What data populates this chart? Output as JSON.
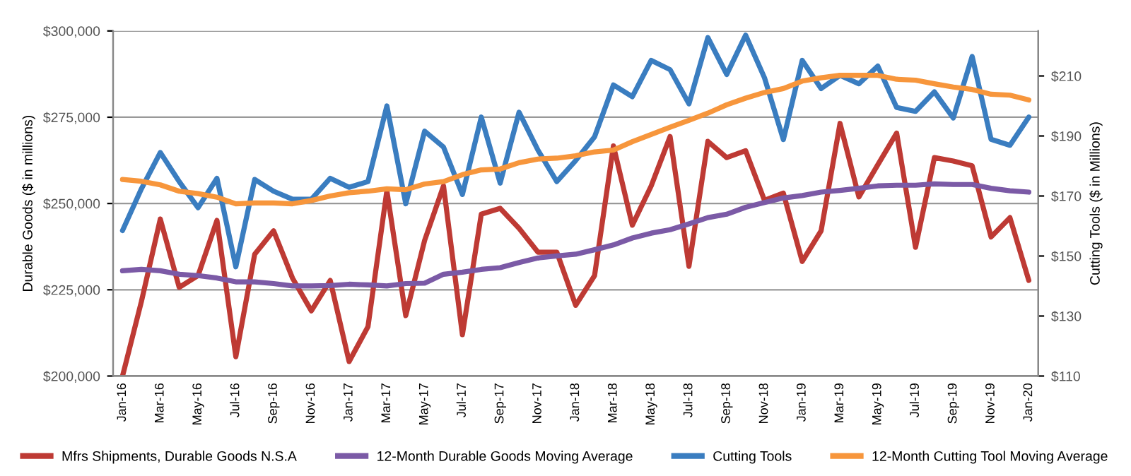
{
  "chart_data": {
    "type": "line",
    "categories": [
      "Jan-16",
      null,
      "Mar-16",
      null,
      "May-16",
      null,
      "Jul-16",
      null,
      "Sep-16",
      null,
      "Nov-16",
      null,
      "Jan-17",
      null,
      "Mar-17",
      null,
      "May-17",
      null,
      "Jul-17",
      null,
      "Sep-17",
      null,
      "Nov-17",
      null,
      "Jan-18",
      null,
      "Mar-18",
      null,
      "May-18",
      null,
      "Jul-18",
      null,
      "Sep-18",
      null,
      "Nov-18",
      null,
      "Jan-19",
      null,
      "Mar-19",
      null,
      "May-19",
      null,
      "Jul-19",
      null,
      "Sep-19",
      null,
      "Nov-19",
      null,
      "Jan-20"
    ],
    "series": [
      {
        "name": "Mfrs Shipments, Durable Goods N.S.A",
        "color": "#be3a34",
        "values": [
          200000,
          221600,
          245500,
          225700,
          229100,
          245100,
          205600,
          235300,
          242100,
          228400,
          218900,
          227700,
          204200,
          214300,
          253700,
          217500,
          239300,
          255100,
          212000,
          246900,
          248600,
          242800,
          235900,
          235900,
          220500,
          229100,
          266700,
          243700,
          255100,
          269400,
          231800,
          268000,
          263300,
          265300,
          250900,
          253000,
          233200,
          242100,
          273200,
          251900,
          261200,
          270400,
          237300,
          263300,
          262300,
          260900,
          240300,
          245900,
          227700
        ]
      },
      {
        "name": "12-Month Durable Goods Moving Average",
        "color": "#7b5aa6",
        "values": [
          230500,
          230900,
          230500,
          229500,
          229100,
          228400,
          227300,
          227300,
          226800,
          226100,
          226100,
          226200,
          226600,
          226400,
          226100,
          226800,
          226900,
          229500,
          230100,
          230900,
          231400,
          232900,
          234200,
          234800,
          235300,
          236600,
          238000,
          240000,
          241400,
          242400,
          244100,
          245900,
          246900,
          248900,
          250300,
          251600,
          252300,
          253300,
          253800,
          254400,
          255100,
          255300,
          255300,
          255700,
          255500,
          255500,
          254400,
          253700,
          253300
        ]
      },
      {
        "name": "Cutting Tools",
        "color": "#3a7dc0",
        "axis": "y2",
        "values": [
          158.5,
          172.4,
          184.5,
          174.8,
          166.1,
          175.9,
          146.4,
          175.5,
          171.6,
          168.9,
          168.9,
          175.9,
          172.9,
          174.8,
          200.0,
          167.4,
          191.6,
          186.3,
          170.5,
          196.3,
          174.3,
          197.9,
          185.3,
          174.8,
          181.8,
          189.7,
          207.0,
          203.1,
          215.2,
          212.1,
          200.7,
          222.8,
          210.5,
          223.6,
          209.4,
          188.8,
          215.2,
          205.8,
          210.2,
          207.4,
          213.3,
          199.5,
          198.2,
          204.7,
          196.0,
          216.5,
          188.9,
          186.9,
          196.3
        ]
      },
      {
        "name": "12-Month Cutting Tool Moving Average",
        "color": "#f7963c",
        "axis": "y2",
        "values": [
          175.5,
          174.9,
          173.7,
          171.6,
          170.8,
          169.6,
          167.4,
          167.7,
          167.7,
          167.4,
          168.5,
          170.0,
          171.1,
          171.6,
          172.4,
          172.1,
          174.0,
          174.8,
          177.1,
          178.7,
          179.0,
          181.1,
          182.3,
          182.6,
          183.4,
          184.7,
          185.3,
          188.1,
          190.5,
          192.9,
          195.2,
          197.6,
          200.4,
          202.6,
          204.5,
          205.8,
          208.3,
          209.4,
          210.2,
          210.2,
          210.2,
          208.9,
          208.6,
          207.4,
          206.3,
          205.5,
          203.9,
          203.6,
          202.0
        ]
      }
    ],
    "ylabel": "Durable Goods ($ in millions)",
    "y2label": "Cutting Tools ($ in Millions)",
    "ylim": [
      200000,
      300000
    ],
    "yticks": [
      {
        "value": 200000,
        "label": "$200,000"
      },
      {
        "value": 225000,
        "label": "$225,000"
      },
      {
        "value": 250000,
        "label": "$250,000"
      },
      {
        "value": 275000,
        "label": "$275,000"
      },
      {
        "value": 300000,
        "label": "$300,000"
      }
    ],
    "y2lim": [
      110,
      225
    ],
    "y2ticks": [
      {
        "value": 110,
        "label": "$110"
      },
      {
        "value": 130,
        "label": "$130"
      },
      {
        "value": 150,
        "label": "$150"
      },
      {
        "value": 170,
        "label": "$170"
      },
      {
        "value": 190,
        "label": "$190"
      },
      {
        "value": 210,
        "label": "$210"
      }
    ],
    "grid": "y",
    "legend": "bottom",
    "marker": "none",
    "line_style": "solid"
  }
}
